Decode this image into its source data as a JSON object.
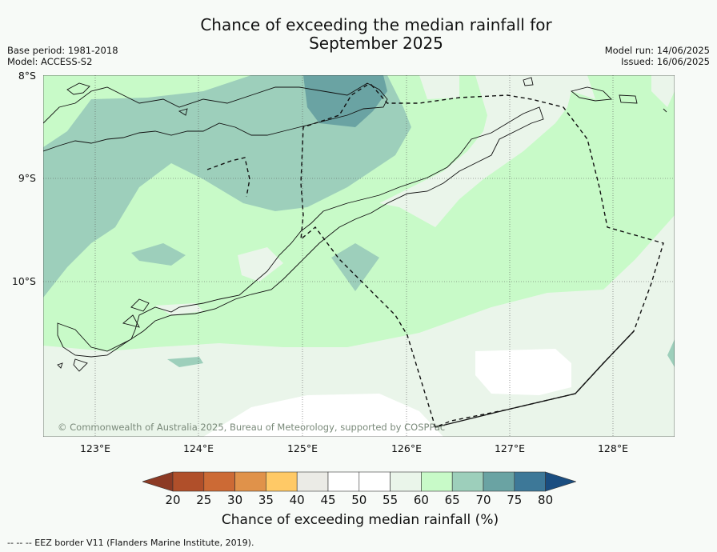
{
  "title_line1": "Chance of exceeding the median rainfall for",
  "title_line2": "September 2025",
  "base_period": "Base period: 1981-2018",
  "model": "Model: ACCESS-S2",
  "model_run": "Model run: 14/06/2025",
  "issued": "Issued: 16/06/2025",
  "lat_labels": [
    "8°S",
    "9°S",
    "10°S"
  ],
  "lon_labels": [
    "123°E",
    "124°E",
    "125°E",
    "126°E",
    "127°E",
    "128°E"
  ],
  "copyright": "© Commonwealth of Australia 2025, Bureau of Meteorology, supported by COSPPac",
  "colorbar": {
    "ticks": [
      "20",
      "25",
      "30",
      "35",
      "40",
      "45",
      "50",
      "55",
      "60",
      "65",
      "70",
      "75",
      "80"
    ],
    "colors": [
      "#8c3a24",
      "#b04f2a",
      "#cc6a35",
      "#e0924a",
      "#ffc966",
      "#ebebe6",
      "#ffffff",
      "#ffffff",
      "#eaf5ea",
      "#c8fac8",
      "#9dcfbb",
      "#6aa3a3",
      "#3d7898",
      "#1a4d80"
    ],
    "title": "Chance of exceeding median rainfall (%)"
  },
  "footer": "--  --  -- EEZ border V11 (Flanders Marine Institute, 2019)."
}
